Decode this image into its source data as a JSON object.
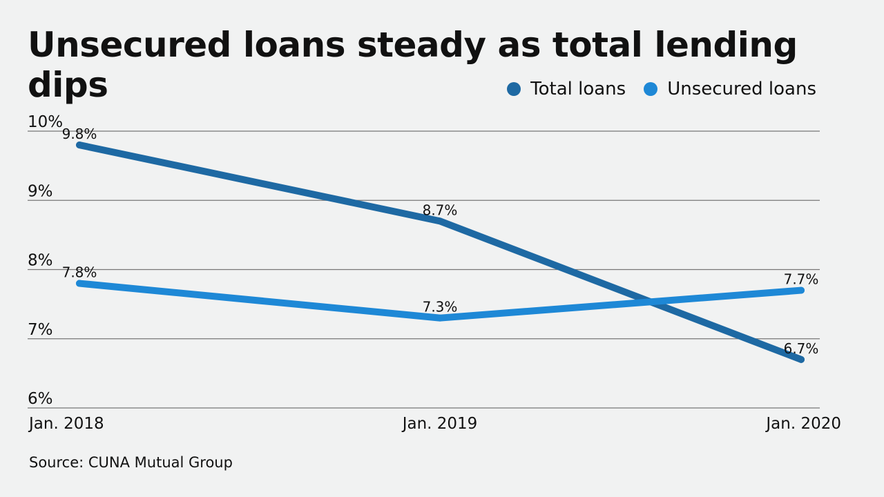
{
  "chart_data": {
    "type": "line",
    "title": "Unsecured loans steady as total lending dips",
    "x": [
      "Jan. 2018",
      "Jan. 2019",
      "Jan. 2020"
    ],
    "ylim": [
      6,
      10
    ],
    "yticks": [
      6,
      7,
      8,
      9,
      10
    ],
    "ytick_labels": [
      "6%",
      "7%",
      "8%",
      "9%",
      "10%"
    ],
    "grid": true,
    "legend_position": "top-right",
    "series": [
      {
        "name": "Total loans",
        "color": "#1e69a3",
        "values": [
          9.8,
          8.7,
          6.7
        ],
        "labels": [
          "9.8%",
          "8.7%",
          "6.7%"
        ]
      },
      {
        "name": "Unsecured loans",
        "color": "#1e88d6",
        "values": [
          7.8,
          7.3,
          7.7
        ],
        "labels": [
          "7.8%",
          "7.3%",
          "7.7%"
        ]
      }
    ],
    "source": "Source: CUNA Mutual Group"
  }
}
